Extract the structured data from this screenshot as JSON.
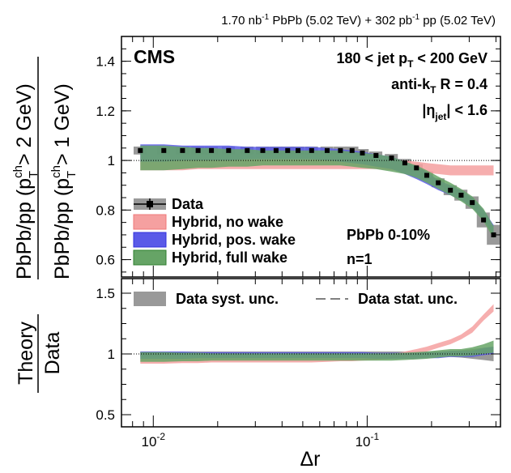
{
  "header": {
    "lumi_pbpb": "1.70 nb",
    "lumi_pbpb_sup": "-1",
    "pbpb_label": " PbPb (5.02 TeV) + 302 pb",
    "lumi_pp_sup": "-1",
    "pp_label": " pp (5.02 TeV)"
  },
  "labels": {
    "cms": "CMS",
    "pt_range_a": "180 < jet p",
    "pt_range_sub": "T",
    "pt_range_b": " < 200 GeV",
    "algo_a": "anti-k",
    "algo_sub": "T",
    "algo_b": " R = 0.4",
    "eta_a": "|η",
    "eta_sub": "jet",
    "eta_b": "| < 1.6",
    "centrality": "PbPb 0-10%",
    "n_label": "n=1",
    "ylabel_outer_a": "PbPb/pp (p",
    "ylabel_outer_sup": "ch",
    "ylabel_outer_sub": "T",
    "ylabel_outer_b": " > 2 GeV)",
    "ylabel_inner_a": "PbPb/pp (p",
    "ylabel_inner_sup": "ch",
    "ylabel_inner_sub": "T",
    "ylabel_inner_b": " > 1 GeV)",
    "ratio_ylabel_num": "Theory",
    "ratio_ylabel_den": "Data",
    "xlabel": "Δr"
  },
  "legend_top": [
    {
      "label": "Data",
      "style": "data",
      "color": "#000000",
      "fill": "#999999"
    },
    {
      "label": "Hybrid, no wake",
      "style": "band",
      "color": "#f07878",
      "fill": "#f5a0a0"
    },
    {
      "label": "Hybrid, pos. wake",
      "style": "band",
      "color": "#3333dd",
      "fill": "#5a5ae8"
    },
    {
      "label": "Hybrid, full wake",
      "style": "band",
      "color": "#2f7f2f",
      "fill": "#66a466"
    }
  ],
  "legend_bottom": [
    {
      "label": "Data syst. unc.",
      "style": "syst",
      "fill": "#999999"
    },
    {
      "label": "Data stat. unc.",
      "style": "stat",
      "color": "#000000"
    }
  ],
  "colors": {
    "data": "#000000",
    "data_syst": "#999999",
    "no_wake": "#f5a0a0",
    "pos_wake": "#5a5ae8",
    "full_wake": "#66a466"
  },
  "chart_data": [
    {
      "type": "line",
      "panel": "main",
      "x_scale": "log",
      "xlim": [
        0.0071,
        0.42
      ],
      "ylim": [
        0.53,
        1.5
      ],
      "yticks": [
        0.6,
        0.8,
        1.0,
        1.2,
        1.4
      ],
      "ytick_labels": [
        "0.6",
        "0.8",
        "1",
        "1.2",
        "1.4"
      ],
      "xticks": [
        0.01,
        0.1
      ],
      "xtick_labels": [
        "10^-2",
        "10^-1"
      ],
      "reference_line": 1.0,
      "x": [
        0.0087,
        0.0112,
        0.0137,
        0.0162,
        0.0187,
        0.0225,
        0.0275,
        0.0325,
        0.0375,
        0.0425,
        0.0475,
        0.055,
        0.065,
        0.075,
        0.085,
        0.095,
        0.11,
        0.13,
        0.15,
        0.17,
        0.19,
        0.215,
        0.245,
        0.275,
        0.31,
        0.35,
        0.39
      ],
      "series": [
        {
          "name": "Data",
          "style": "data",
          "y": [
            1.04,
            1.04,
            1.04,
            1.04,
            1.04,
            1.04,
            1.04,
            1.04,
            1.04,
            1.04,
            1.04,
            1.04,
            1.04,
            1.04,
            1.04,
            1.03,
            1.02,
            1.01,
            0.99,
            0.97,
            0.94,
            0.91,
            0.88,
            0.86,
            0.83,
            0.76,
            0.7
          ],
          "syst": [
            0.016,
            0.016,
            0.016,
            0.016,
            0.016,
            0.016,
            0.016,
            0.016,
            0.016,
            0.016,
            0.016,
            0.016,
            0.016,
            0.016,
            0.016,
            0.016,
            0.016,
            0.016,
            0.016,
            0.016,
            0.016,
            0.018,
            0.02,
            0.022,
            0.025,
            0.03,
            0.04
          ]
        },
        {
          "name": "Hybrid, no wake",
          "style": "band",
          "y": [
            0.98,
            0.98,
            0.98,
            0.985,
            0.985,
            0.985,
            0.985,
            0.985,
            0.985,
            0.985,
            0.985,
            0.985,
            0.985,
            0.985,
            0.985,
            0.985,
            0.985,
            0.98,
            0.98,
            0.975,
            0.97,
            0.965,
            0.96,
            0.96,
            0.96,
            0.96,
            0.96
          ],
          "width": [
            0.02,
            0.02,
            0.02,
            0.02,
            0.02,
            0.02,
            0.02,
            0.02,
            0.02,
            0.02,
            0.02,
            0.02,
            0.02,
            0.02,
            0.02,
            0.02,
            0.02,
            0.02,
            0.02,
            0.02,
            0.02,
            0.02,
            0.02,
            0.02,
            0.02,
            0.02,
            0.02
          ]
        },
        {
          "name": "Hybrid, pos. wake",
          "style": "band",
          "y": [
            1.03,
            1.03,
            1.03,
            1.03,
            1.03,
            1.03,
            1.03,
            1.03,
            1.03,
            1.03,
            1.03,
            1.03,
            1.025,
            1.02,
            1.015,
            1.01,
            1.0,
            0.99,
            0.97,
            0.95,
            0.93,
            0.9,
            0.88,
            0.86,
            0.83,
            0.78,
            0.72
          ],
          "width": [
            0.035,
            0.035,
            0.03,
            0.03,
            0.03,
            0.03,
            0.025,
            0.025,
            0.025,
            0.025,
            0.025,
            0.025,
            0.025,
            0.025,
            0.025,
            0.025,
            0.025,
            0.025,
            0.025,
            0.025,
            0.025,
            0.02,
            0.02,
            0.02,
            0.02,
            0.02,
            0.02
          ]
        },
        {
          "name": "Hybrid, full wake",
          "style": "band",
          "y": [
            1.01,
            1.01,
            1.01,
            1.01,
            1.01,
            1.01,
            1.01,
            1.01,
            1.01,
            1.01,
            1.01,
            1.01,
            1.01,
            1.01,
            1.005,
            1.0,
            0.995,
            0.985,
            0.97,
            0.955,
            0.935,
            0.91,
            0.885,
            0.86,
            0.83,
            0.78,
            0.71
          ],
          "width": [
            0.05,
            0.05,
            0.045,
            0.04,
            0.04,
            0.035,
            0.035,
            0.03,
            0.03,
            0.03,
            0.03,
            0.03,
            0.03,
            0.03,
            0.03,
            0.03,
            0.03,
            0.03,
            0.025,
            0.025,
            0.025,
            0.025,
            0.025,
            0.025,
            0.025,
            0.025,
            0.025
          ]
        }
      ]
    },
    {
      "type": "line",
      "panel": "ratio",
      "x_scale": "log",
      "xlim": [
        0.0071,
        0.42
      ],
      "ylim": [
        0.4,
        1.62
      ],
      "yticks": [
        0.5,
        1.0,
        1.5
      ],
      "ytick_labels": [
        "0.5",
        "1",
        "1.5"
      ],
      "reference_line": 1.0,
      "x": [
        0.0087,
        0.0112,
        0.0137,
        0.0162,
        0.0187,
        0.0225,
        0.0275,
        0.0325,
        0.0375,
        0.0425,
        0.0475,
        0.055,
        0.065,
        0.075,
        0.085,
        0.095,
        0.11,
        0.13,
        0.15,
        0.17,
        0.19,
        0.215,
        0.245,
        0.275,
        0.31,
        0.35,
        0.39
      ],
      "series": [
        {
          "name": "Data syst. unc.",
          "style": "syst",
          "y": [
            1.0,
            1.0,
            1.0,
            1.0,
            1.0,
            1.0,
            1.0,
            1.0,
            1.0,
            1.0,
            1.0,
            1.0,
            1.0,
            1.0,
            1.0,
            1.0,
            1.0,
            1.0,
            1.0,
            1.0,
            1.0,
            1.0,
            1.0,
            1.0,
            1.0,
            1.0,
            1.0
          ],
          "width": [
            0.02,
            0.02,
            0.02,
            0.02,
            0.02,
            0.02,
            0.02,
            0.02,
            0.02,
            0.02,
            0.02,
            0.02,
            0.02,
            0.02,
            0.02,
            0.02,
            0.02,
            0.02,
            0.02,
            0.02,
            0.02,
            0.02,
            0.025,
            0.03,
            0.04,
            0.05,
            0.06
          ]
        },
        {
          "name": "Hybrid, no wake",
          "style": "band",
          "y": [
            0.94,
            0.94,
            0.945,
            0.945,
            0.95,
            0.95,
            0.95,
            0.95,
            0.95,
            0.95,
            0.95,
            0.95,
            0.955,
            0.96,
            0.96,
            0.965,
            0.97,
            0.98,
            1.0,
            1.02,
            1.04,
            1.07,
            1.1,
            1.14,
            1.2,
            1.3,
            1.38
          ],
          "width": [
            0.02,
            0.02,
            0.02,
            0.02,
            0.02,
            0.02,
            0.02,
            0.02,
            0.02,
            0.02,
            0.02,
            0.02,
            0.02,
            0.02,
            0.02,
            0.02,
            0.02,
            0.02,
            0.02,
            0.02,
            0.02,
            0.02,
            0.02,
            0.02,
            0.025,
            0.025,
            0.03
          ]
        },
        {
          "name": "Hybrid, pos. wake",
          "style": "band",
          "y": [
            0.99,
            0.99,
            0.99,
            0.99,
            0.99,
            0.99,
            0.99,
            0.99,
            0.99,
            0.99,
            0.99,
            0.99,
            0.99,
            0.99,
            0.99,
            0.99,
            0.985,
            0.985,
            0.985,
            0.985,
            0.99,
            0.99,
            1.0,
            1.0,
            1.0,
            1.02,
            1.03
          ],
          "width": [
            0.03,
            0.03,
            0.03,
            0.025,
            0.025,
            0.025,
            0.025,
            0.025,
            0.025,
            0.025,
            0.025,
            0.025,
            0.025,
            0.025,
            0.025,
            0.025,
            0.025,
            0.025,
            0.025,
            0.025,
            0.025,
            0.025,
            0.025,
            0.025,
            0.025,
            0.03,
            0.03
          ]
        },
        {
          "name": "Hybrid, full wake",
          "style": "band",
          "y": [
            0.975,
            0.975,
            0.975,
            0.975,
            0.975,
            0.975,
            0.975,
            0.975,
            0.975,
            0.975,
            0.975,
            0.975,
            0.975,
            0.975,
            0.975,
            0.975,
            0.975,
            0.975,
            0.98,
            0.985,
            0.99,
            1.0,
            1.01,
            1.01,
            1.02,
            1.04,
            1.06
          ],
          "width": [
            0.04,
            0.04,
            0.035,
            0.035,
            0.03,
            0.03,
            0.03,
            0.03,
            0.03,
            0.03,
            0.03,
            0.03,
            0.03,
            0.03,
            0.03,
            0.03,
            0.03,
            0.03,
            0.03,
            0.03,
            0.03,
            0.03,
            0.03,
            0.03,
            0.035,
            0.04,
            0.05
          ]
        }
      ]
    }
  ]
}
